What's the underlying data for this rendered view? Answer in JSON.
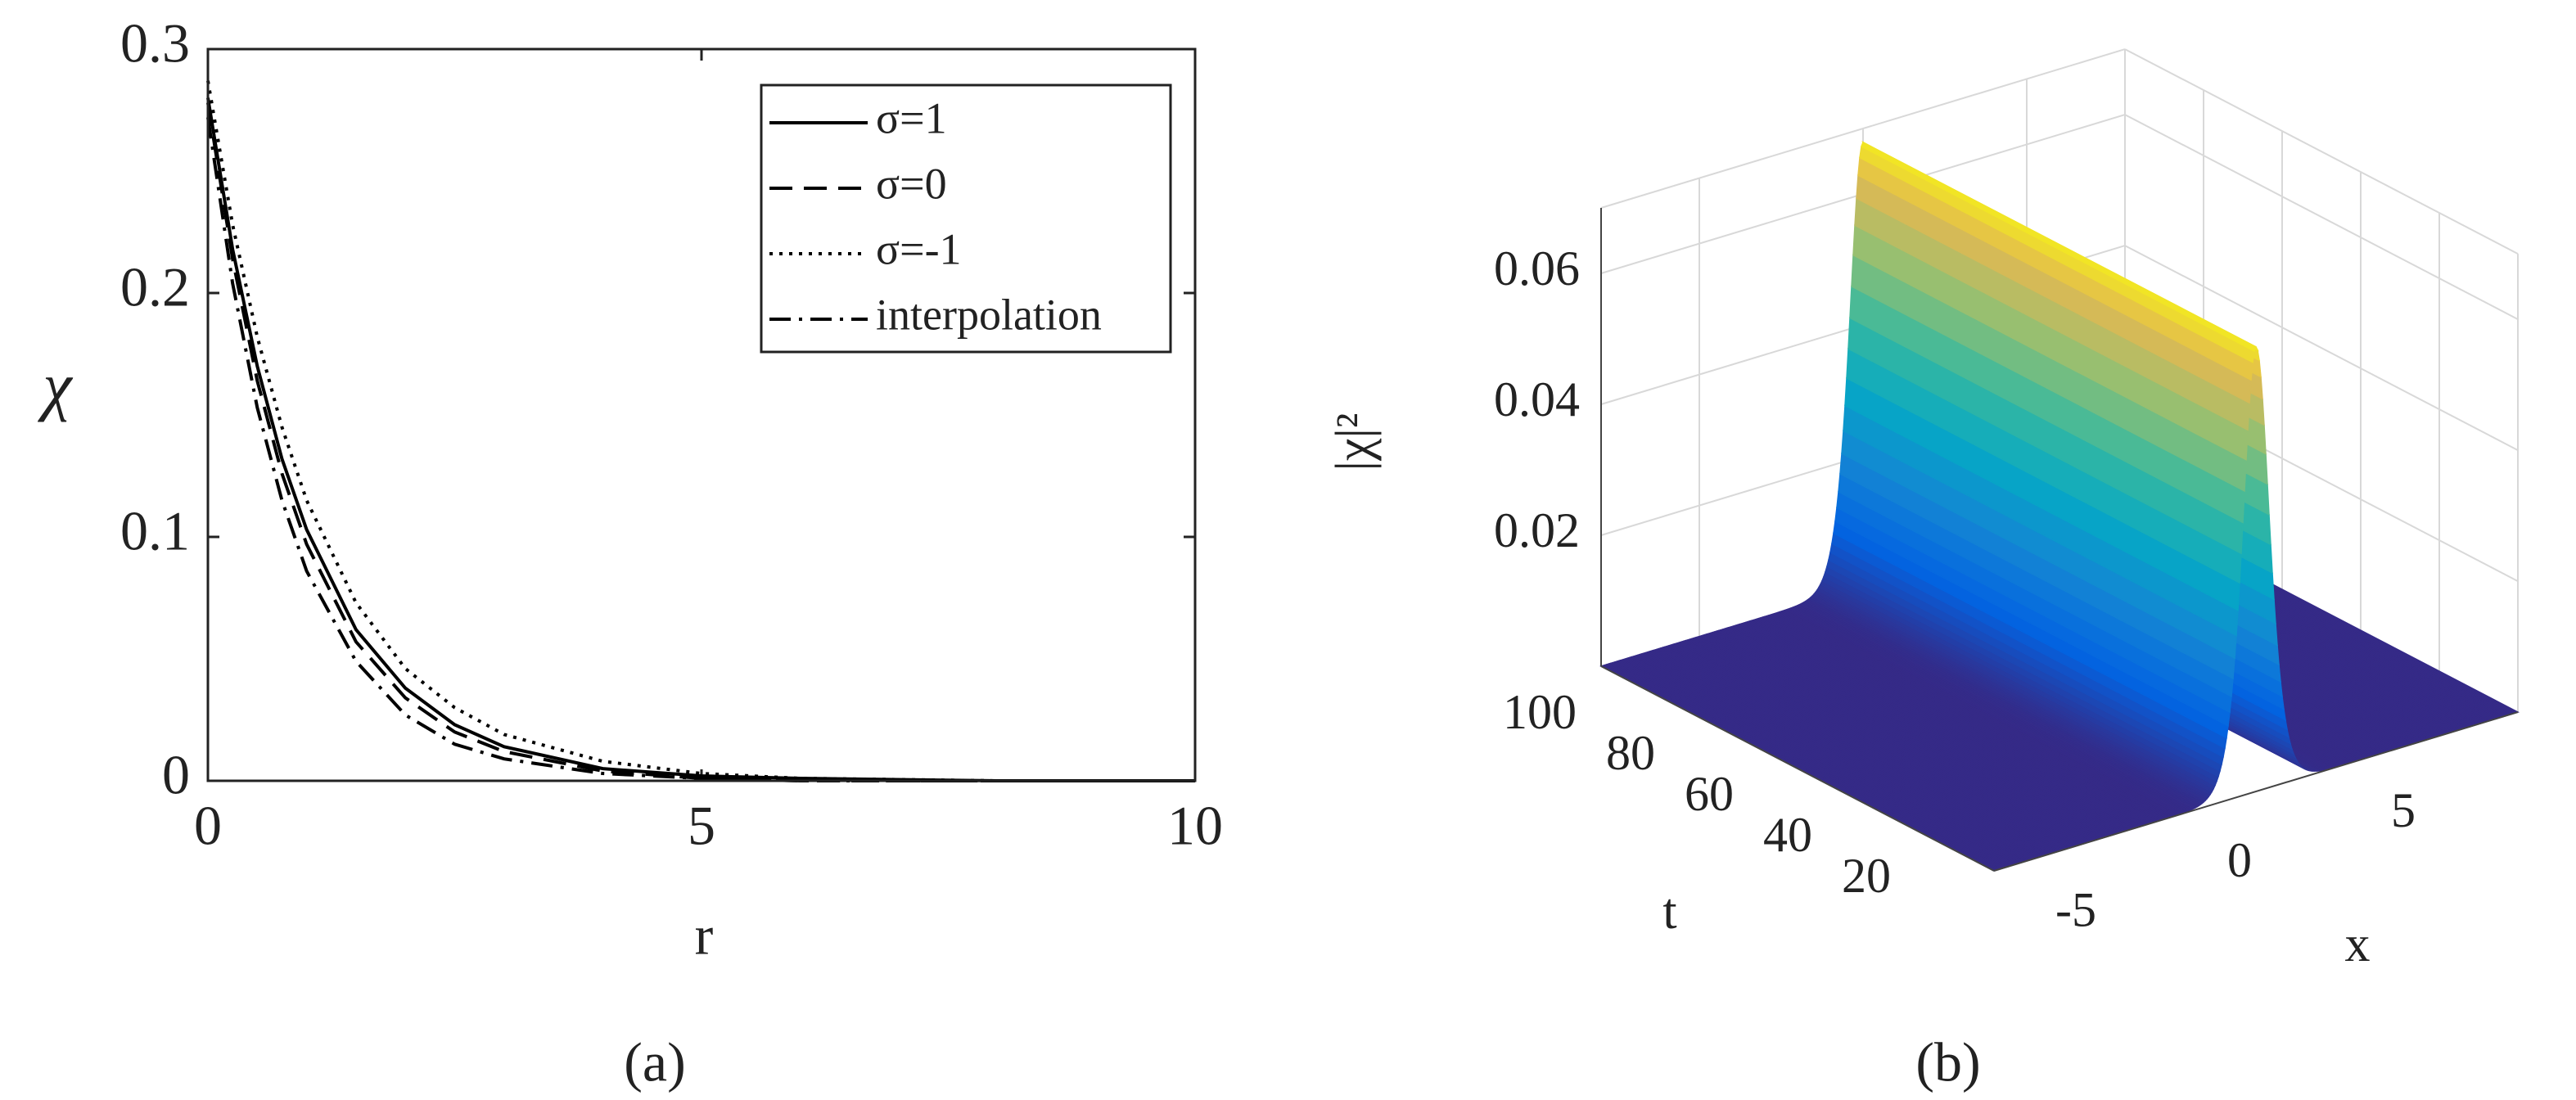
{
  "chart_data": [
    {
      "type": "line",
      "caption": "(a)",
      "xlabel": "r",
      "ylabel": "χ",
      "x": [
        0,
        0.25,
        0.5,
        0.75,
        1,
        1.5,
        2,
        2.5,
        3,
        4,
        5,
        6,
        8,
        10
      ],
      "series": [
        {
          "name": "σ=1",
          "color": "#000000",
          "dash": "solid",
          "values": [
            0.28,
            0.218,
            0.17,
            0.132,
            0.103,
            0.062,
            0.038,
            0.023,
            0.014,
            0.005,
            0.002,
            0.001,
            0,
            0
          ]
        },
        {
          "name": "σ=0",
          "color": "#000000",
          "dash": "dashed",
          "values": [
            0.278,
            0.214,
            0.164,
            0.126,
            0.097,
            0.057,
            0.034,
            0.02,
            0.012,
            0.004,
            0.001,
            0,
            0,
            0
          ]
        },
        {
          "name": "σ=-1",
          "color": "#000000",
          "dash": "dotted",
          "values": [
            0.287,
            0.228,
            0.182,
            0.145,
            0.115,
            0.073,
            0.046,
            0.03,
            0.019,
            0.008,
            0.003,
            0.001,
            0,
            0
          ]
        },
        {
          "name": "interpolation",
          "color": "#000000",
          "dash": "dashdot",
          "values": [
            0.272,
            0.204,
            0.153,
            0.115,
            0.086,
            0.049,
            0.027,
            0.015,
            0.009,
            0.003,
            0.001,
            0,
            0,
            0
          ]
        }
      ],
      "xlim": [
        0,
        10
      ],
      "ylim": [
        0,
        0.3
      ],
      "xticks": [
        0,
        5,
        10
      ],
      "yticks": [
        0,
        0.1,
        0.2,
        0.3
      ],
      "legend": "upper right"
    },
    {
      "type": "surface",
      "caption": "(b)",
      "xlabel": "x",
      "ylabel": "t",
      "zlabel": "|χ|²",
      "colormap": "parula",
      "xlim": [
        -8,
        8
      ],
      "ylim": [
        0,
        100
      ],
      "zlim": [
        0,
        0.07
      ],
      "xticks": [
        -5,
        0,
        5
      ],
      "yticks": [
        20,
        40,
        60,
        80,
        100
      ],
      "zticks": [
        0.02,
        0.04,
        0.06
      ],
      "grid": true
    }
  ]
}
